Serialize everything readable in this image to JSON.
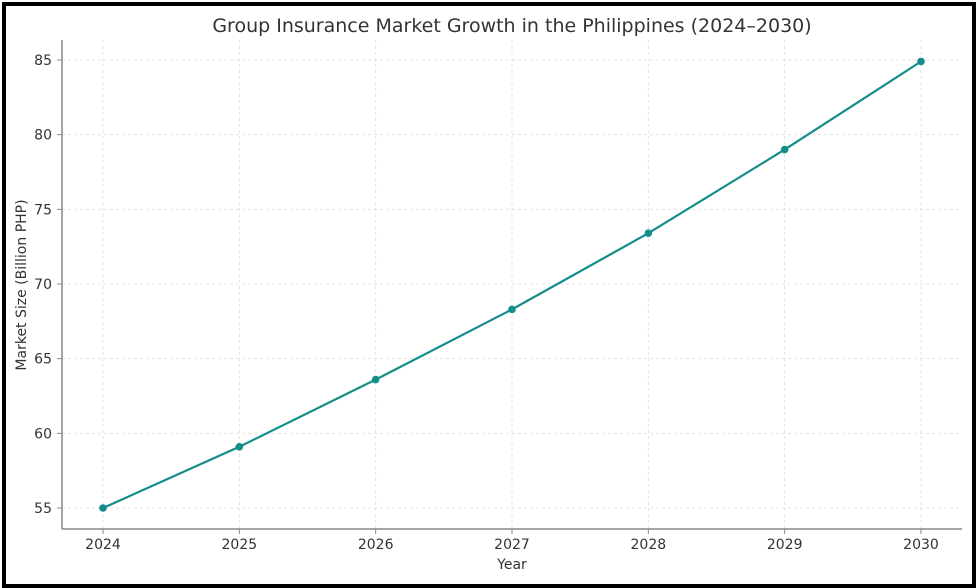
{
  "chart_data": {
    "type": "line",
    "title": "Group Insurance Market Growth in the Philippines (2024–2030)",
    "xlabel": "Year",
    "ylabel": "Market Size (Billion PHP)",
    "x": [
      2024,
      2025,
      2026,
      2027,
      2028,
      2029,
      2030
    ],
    "x_tick_labels": [
      "2024",
      "2025",
      "2026",
      "2027",
      "2028",
      "2029",
      "2030"
    ],
    "y_ticks": [
      55,
      60,
      65,
      70,
      75,
      80,
      85
    ],
    "y_tick_labels": [
      "55",
      "60",
      "65",
      "70",
      "75",
      "80",
      "85"
    ],
    "series": [
      {
        "name": "Market Size",
        "values": [
          55.0,
          59.1,
          63.6,
          68.3,
          73.4,
          79.0,
          84.9
        ],
        "color": "#138d8a"
      }
    ],
    "ylim": [
      55,
      85
    ],
    "grid": true
  }
}
